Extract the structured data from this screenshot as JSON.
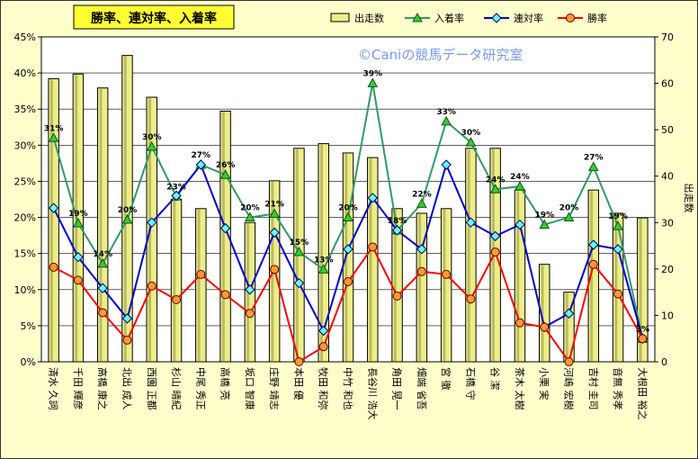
{
  "chart_data": {
    "type": "bar",
    "title": "勝率、連対率、入着率",
    "watermark": "©Caniの競馬データ研究室",
    "ylabel_right": "出走数",
    "y_left": {
      "min": 0,
      "max": 45,
      "step": 5,
      "unit": "%"
    },
    "y_right": {
      "min": 0,
      "max": 70,
      "step": 10
    },
    "grid": true,
    "legend_position": "top",
    "categories": [
      "清水 久詞",
      "千田 輝彦",
      "高橋 康之",
      "北出 成人",
      "西園 正都",
      "杉山 晴紀",
      "中尾 秀正",
      "高橋 亮",
      "坂口 智康",
      "庄野 靖志",
      "本田 優",
      "牧田 和弥",
      "中竹 和也",
      "長谷川 浩大",
      "角田 晃一",
      "畑端 省吾",
      "宮 徹",
      "石橋 守",
      "谷 潔",
      "茶木 太樹",
      "小栗 実",
      "河嶋 宏樹",
      "吉村 圭司",
      "音無 秀孝",
      "大根田 裕之"
    ],
    "series": [
      {
        "name": "出走数",
        "type": "bar",
        "axis": "right",
        "color": "#eeee88",
        "values": [
          61,
          62,
          59,
          66,
          57,
          35,
          33,
          54,
          30,
          39,
          46,
          47,
          45,
          44,
          33,
          32,
          33,
          46,
          46,
          37,
          21,
          15,
          37,
          32,
          31
        ]
      },
      {
        "name": "入着率",
        "type": "line",
        "axis": "left",
        "color": "#339966",
        "marker": "triangle",
        "values": [
          31,
          19.2,
          13.6,
          19.7,
          29.8,
          22.9,
          27.3,
          25.9,
          20,
          20.5,
          15.2,
          12.8,
          20,
          38.6,
          18.2,
          21.9,
          33.3,
          30.4,
          23.9,
          24.3,
          19,
          20,
          27,
          18.8,
          3.2
        ],
        "labels": [
          "31%",
          "19%",
          "14%",
          "20%",
          "30%",
          "23%",
          "27%",
          "26%",
          "20%",
          "21%",
          "15%",
          "13%",
          "20%",
          "39%",
          "18%",
          "22%",
          "33%",
          "30%",
          "24%",
          "24%",
          "19%",
          "20%",
          "27%",
          "19%",
          "3%"
        ]
      },
      {
        "name": "連対率",
        "type": "line",
        "axis": "left",
        "color": "#0000cc",
        "marker": "diamond",
        "values": [
          21.3,
          14.5,
          10.2,
          6,
          19.3,
          23,
          27.3,
          18.5,
          10,
          17.9,
          10.9,
          4.3,
          15.6,
          22.7,
          18.2,
          15.6,
          27.3,
          19.3,
          17.4,
          19,
          4.8,
          6.7,
          16.2,
          15.6,
          3.2
        ]
      },
      {
        "name": "勝率",
        "type": "line",
        "axis": "left",
        "color": "#ff0000",
        "marker": "circle",
        "values": [
          13.1,
          11.3,
          6.8,
          3,
          10.5,
          8.6,
          12.1,
          9.3,
          6.7,
          12.8,
          0,
          2.1,
          11.1,
          15.9,
          9.1,
          12.5,
          12.1,
          8.7,
          15.2,
          5.4,
          4.8,
          0,
          13.5,
          9.4,
          3.2
        ]
      }
    ]
  }
}
